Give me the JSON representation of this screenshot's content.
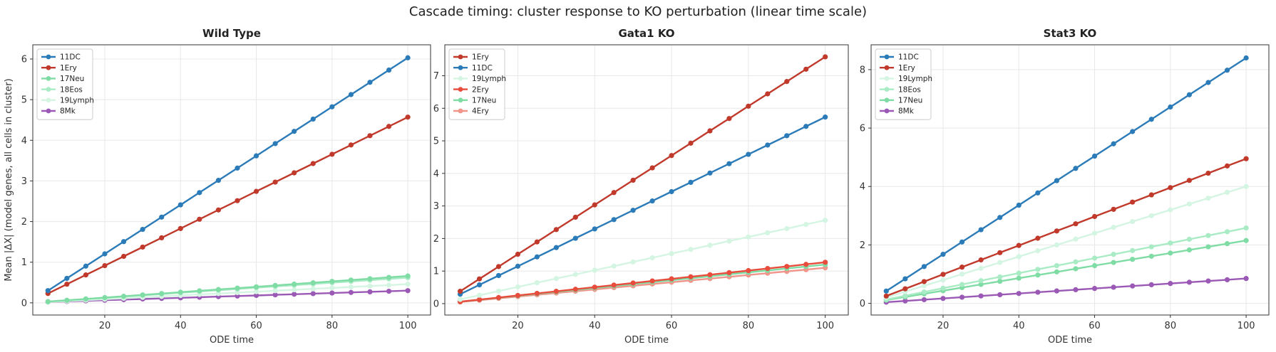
{
  "figure": {
    "suptitle": "Cascade timing: cluster response to KO perturbation (linear time scale)"
  },
  "chart_data": [
    {
      "type": "line",
      "title": "Wild Type",
      "xlabel": "ODE time",
      "ylabel": "Mean |ΔX| (model genes, all cells in cluster)",
      "xlim": [
        1,
        106
      ],
      "ylim": [
        -0.3,
        6.35
      ],
      "xticks": [
        20,
        40,
        60,
        80,
        100
      ],
      "yticks": [
        0,
        1,
        2,
        3,
        4,
        5,
        6
      ],
      "grid": true,
      "legend": "top-left",
      "x": [
        5,
        10,
        15,
        20,
        25,
        30,
        35,
        40,
        45,
        50,
        55,
        60,
        65,
        70,
        75,
        80,
        85,
        90,
        95,
        100
      ],
      "series": [
        {
          "name": "11DC",
          "color": "#2b7bb9",
          "start": 0.3,
          "end": 6.03
        },
        {
          "name": "1Ery",
          "color": "#c0392b",
          "start": 0.23,
          "end": 4.57
        },
        {
          "name": "17Neu",
          "color": "#7fdca4",
          "start": 0.03,
          "end": 0.66
        },
        {
          "name": "18Eos",
          "color": "#a9ebc5",
          "start": 0.03,
          "end": 0.62
        },
        {
          "name": "19Lymph",
          "color": "#d5f5e3",
          "start": 0.02,
          "end": 0.46
        },
        {
          "name": "8Mk",
          "color": "#9b59b6",
          "start": 0.02,
          "end": 0.3
        }
      ]
    },
    {
      "type": "line",
      "title": "Gata1 KO",
      "xlabel": "ODE time",
      "ylabel": "",
      "xlim": [
        1,
        106
      ],
      "ylim": [
        -0.35,
        7.95
      ],
      "xticks": [
        20,
        40,
        60,
        80,
        100
      ],
      "yticks": [
        0,
        1,
        2,
        3,
        4,
        5,
        6,
        7
      ],
      "grid": true,
      "legend": "top-left",
      "x": [
        5,
        10,
        15,
        20,
        25,
        30,
        35,
        40,
        45,
        50,
        55,
        60,
        65,
        70,
        75,
        80,
        85,
        90,
        95,
        100
      ],
      "series": [
        {
          "name": "1Ery",
          "color": "#c0392b",
          "start": 0.38,
          "end": 7.58
        },
        {
          "name": "11DC",
          "color": "#2b7bb9",
          "start": 0.29,
          "end": 5.73
        },
        {
          "name": "19Lymph",
          "color": "#d5f5e3",
          "start": 0.13,
          "end": 2.56
        },
        {
          "name": "2Ery",
          "color": "#e74c3c",
          "start": 0.06,
          "end": 1.27
        },
        {
          "name": "17Neu",
          "color": "#7fdca4",
          "start": 0.06,
          "end": 1.2
        },
        {
          "name": "4Ery",
          "color": "#f1948a",
          "start": 0.05,
          "end": 1.1
        }
      ]
    },
    {
      "type": "line",
      "title": "Stat3 KO",
      "xlabel": "ODE time",
      "ylabel": "",
      "xlim": [
        1,
        106
      ],
      "ylim": [
        -0.4,
        8.85
      ],
      "xticks": [
        20,
        40,
        60,
        80,
        100
      ],
      "yticks": [
        0,
        2,
        4,
        6,
        8
      ],
      "grid": true,
      "legend": "top-left",
      "x": [
        5,
        10,
        15,
        20,
        25,
        30,
        35,
        40,
        45,
        50,
        55,
        60,
        65,
        70,
        75,
        80,
        85,
        90,
        95,
        100
      ],
      "series": [
        {
          "name": "11DC",
          "color": "#2b7bb9",
          "start": 0.42,
          "end": 8.4
        },
        {
          "name": "1Ery",
          "color": "#c0392b",
          "start": 0.25,
          "end": 4.95
        },
        {
          "name": "19Lymph",
          "color": "#d5f5e3",
          "start": 0.2,
          "end": 4.0
        },
        {
          "name": "18Eos",
          "color": "#a9ebc5",
          "start": 0.13,
          "end": 2.58
        },
        {
          "name": "17Neu",
          "color": "#7fdca4",
          "start": 0.11,
          "end": 2.15
        },
        {
          "name": "8Mk",
          "color": "#9b59b6",
          "start": 0.04,
          "end": 0.85
        }
      ]
    }
  ]
}
